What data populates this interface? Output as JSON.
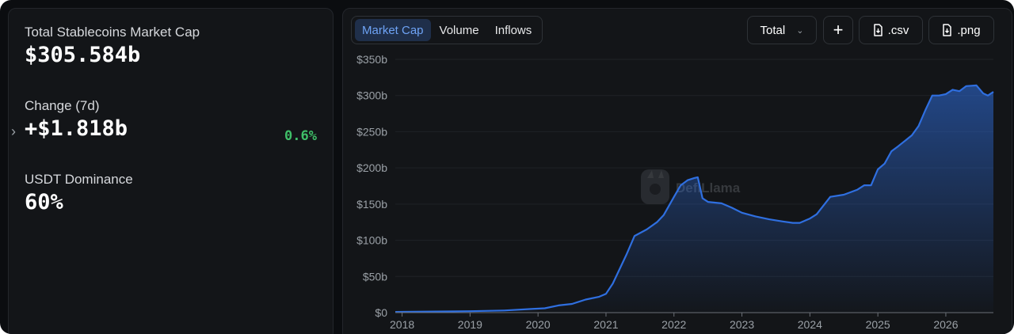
{
  "stats": {
    "market_cap_label": "Total Stablecoins Market Cap",
    "market_cap_value": "$305.584b",
    "change_label": "Change (7d)",
    "change_value": "+$1.818b",
    "change_pct": "0.6%",
    "dominance_label": "USDT Dominance",
    "dominance_value": "60%"
  },
  "tabs": [
    {
      "label": "Market Cap",
      "active": true
    },
    {
      "label": "Volume",
      "active": false
    },
    {
      "label": "Inflows",
      "active": false
    }
  ],
  "toolbar": {
    "select_label": "Total",
    "csv_label": ".csv",
    "png_label": ".png"
  },
  "watermark": "DefiLlama",
  "colors": {
    "line": "#2f6fe0",
    "positive": "#3fbf68",
    "active_tab": "#6ea3f5"
  },
  "chart_data": {
    "type": "area",
    "title": "",
    "xlabel": "",
    "ylabel": "",
    "xlim": [
      2017.9,
      2026.7
    ],
    "ylim": [
      0,
      350
    ],
    "y_ticks": [
      0,
      50,
      100,
      150,
      200,
      250,
      300,
      350
    ],
    "y_tick_labels": [
      "$0",
      "$50b",
      "$100b",
      "$150b",
      "$200b",
      "$250b",
      "$300b",
      "$350b"
    ],
    "x_ticks": [
      2018,
      2019,
      2020,
      2021,
      2022,
      2023,
      2024,
      2025,
      2026
    ],
    "x_tick_labels": [
      "2018",
      "2019",
      "2020",
      "2021",
      "2022",
      "2023",
      "2024",
      "2025",
      "2026"
    ],
    "grid": "horizontal",
    "series": [
      {
        "name": "",
        "x": [
          2017.9,
          2018.5,
          2019.0,
          2019.5,
          2019.9,
          2020.1,
          2020.3,
          2020.5,
          2020.7,
          2020.9,
          2021.0,
          2021.1,
          2021.2,
          2021.3,
          2021.42,
          2021.6,
          2021.75,
          2021.85,
          2022.0,
          2022.1,
          2022.2,
          2022.3,
          2022.35,
          2022.42,
          2022.5,
          2022.7,
          2022.85,
          2023.0,
          2023.2,
          2023.4,
          2023.6,
          2023.75,
          2023.85,
          2024.0,
          2024.1,
          2024.2,
          2024.3,
          2024.5,
          2024.7,
          2024.8,
          2024.9,
          2025.0,
          2025.1,
          2025.2,
          2025.3,
          2025.5,
          2025.6,
          2025.7,
          2025.8,
          2025.9,
          2026.0,
          2026.1,
          2026.2,
          2026.3,
          2026.45,
          2026.55,
          2026.62,
          2026.7
        ],
        "values": [
          1,
          1.5,
          2,
          3,
          5,
          6,
          10,
          12,
          18,
          22,
          26,
          40,
          60,
          80,
          106,
          115,
          125,
          135,
          160,
          176,
          183,
          186,
          187,
          158,
          153,
          151,
          145,
          138,
          133,
          129,
          126,
          124,
          124,
          130,
          136,
          148,
          160,
          163,
          170,
          176,
          176,
          198,
          206,
          223,
          230,
          245,
          258,
          280,
          300,
          300,
          302,
          308,
          306,
          313,
          314,
          303,
          300,
          305
        ]
      }
    ]
  }
}
